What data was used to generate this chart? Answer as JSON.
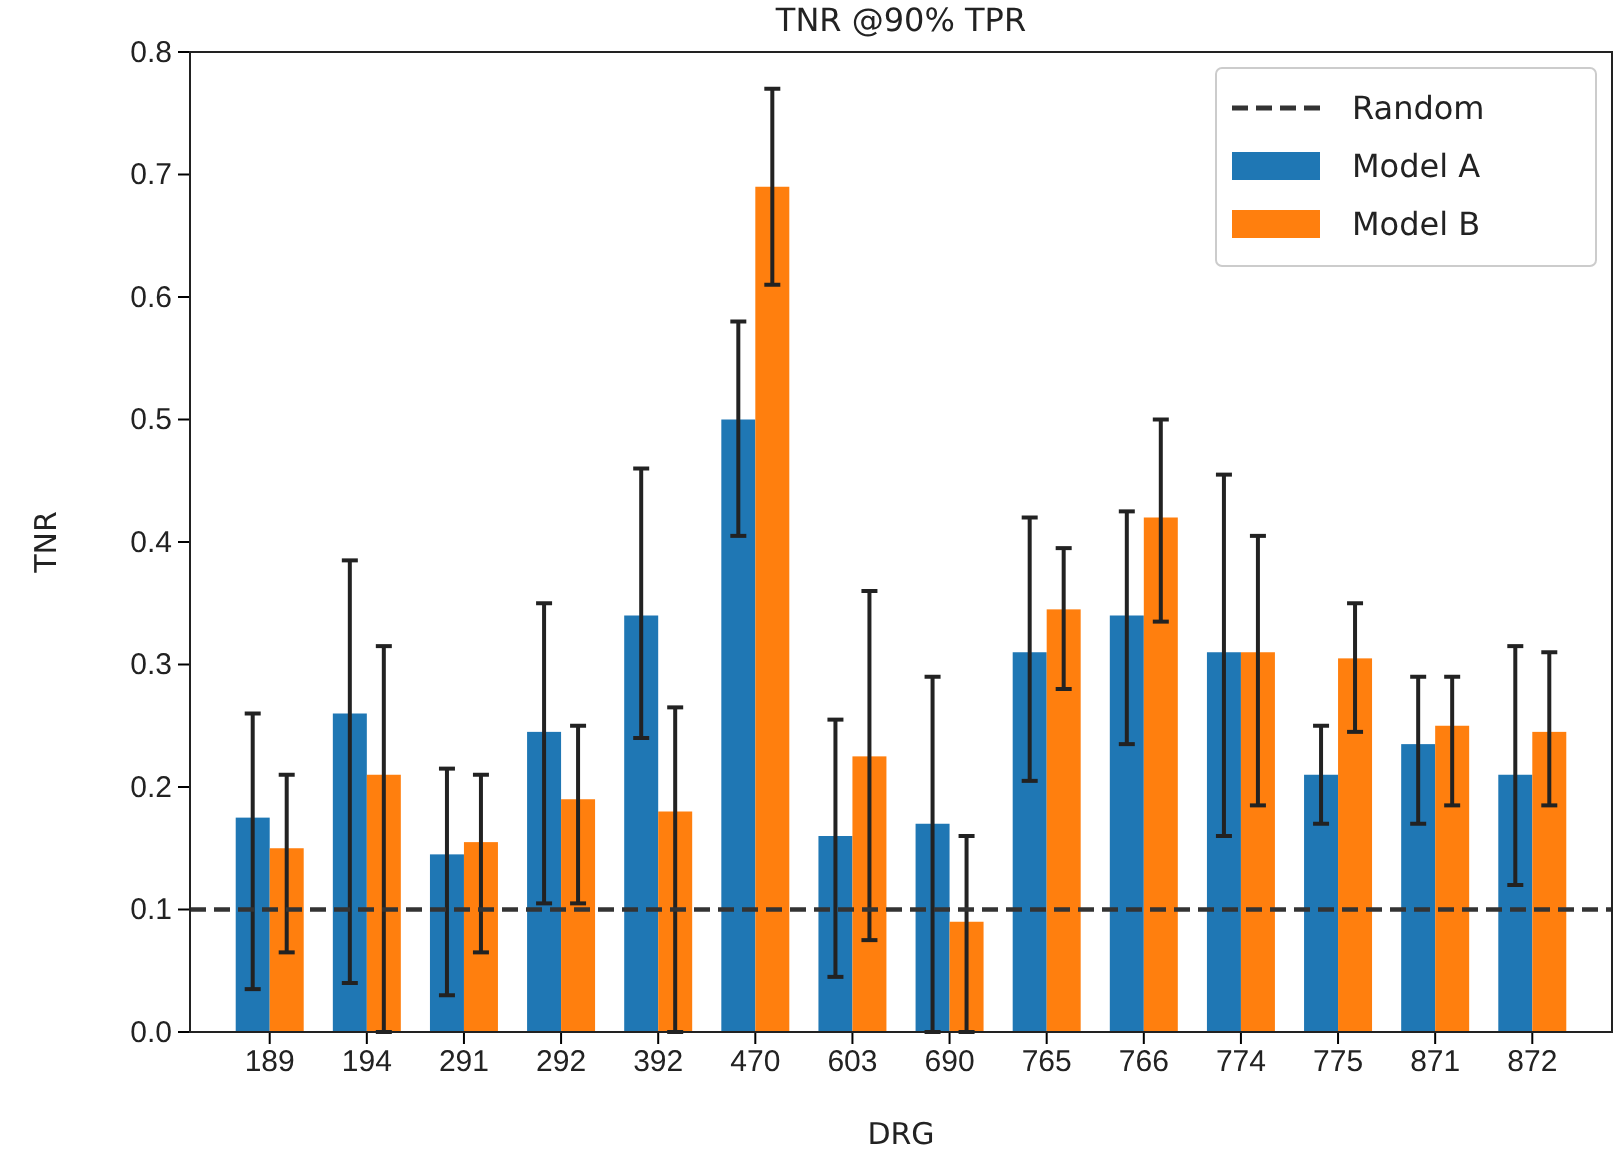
{
  "chart_data": {
    "type": "bar",
    "title": "TNR @90% TPR",
    "xlabel": "DRG",
    "ylabel": "TNR",
    "categories": [
      "189",
      "194",
      "291",
      "292",
      "392",
      "470",
      "603",
      "690",
      "765",
      "766",
      "774",
      "775",
      "871",
      "872"
    ],
    "series": [
      {
        "name": "Model A",
        "color": "#1f77b4",
        "values": [
          0.175,
          0.26,
          0.145,
          0.245,
          0.34,
          0.5,
          0.16,
          0.17,
          0.31,
          0.34,
          0.31,
          0.21,
          0.235,
          0.21
        ],
        "errors": [
          [
            0.035,
            0.26
          ],
          [
            0.04,
            0.385
          ],
          [
            0.03,
            0.215
          ],
          [
            0.105,
            0.35
          ],
          [
            0.24,
            0.46
          ],
          [
            0.405,
            0.58
          ],
          [
            0.045,
            0.255
          ],
          [
            0.0,
            0.29
          ],
          [
            0.205,
            0.42
          ],
          [
            0.235,
            0.425
          ],
          [
            0.16,
            0.455
          ],
          [
            0.17,
            0.25
          ],
          [
            0.17,
            0.29
          ],
          [
            0.12,
            0.315
          ]
        ]
      },
      {
        "name": "Model B",
        "color": "#ff7f0e",
        "values": [
          0.15,
          0.21,
          0.155,
          0.19,
          0.18,
          0.69,
          0.225,
          0.09,
          0.345,
          0.42,
          0.31,
          0.305,
          0.25,
          0.245
        ],
        "errors": [
          [
            0.065,
            0.21
          ],
          [
            0.0,
            0.315
          ],
          [
            0.065,
            0.21
          ],
          [
            0.105,
            0.25
          ],
          [
            0.0,
            0.265
          ],
          [
            0.61,
            0.77
          ],
          [
            0.075,
            0.36
          ],
          [
            0.0,
            0.16
          ],
          [
            0.28,
            0.395
          ],
          [
            0.335,
            0.5
          ],
          [
            0.185,
            0.405
          ],
          [
            0.245,
            0.35
          ],
          [
            0.185,
            0.29
          ],
          [
            0.185,
            0.31
          ]
        ]
      }
    ],
    "ylim": [
      0,
      0.8
    ],
    "yticks": [
      {
        "value": 0,
        "label": "0.0"
      },
      {
        "value": 0.1,
        "label": "0.1"
      },
      {
        "value": 0.2,
        "label": "0.2"
      },
      {
        "value": 0.3,
        "label": "0.3"
      },
      {
        "value": 0.4,
        "label": "0.4"
      },
      {
        "value": 0.5,
        "label": "0.5"
      },
      {
        "value": 0.6,
        "label": "0.6"
      },
      {
        "value": 0.7,
        "label": "0.7"
      },
      {
        "value": 0.8,
        "label": "0.8"
      }
    ],
    "ref_lines": [
      {
        "axis": "y",
        "value": 0.1,
        "label": "Random",
        "color": "#333333",
        "line_style": "dashed"
      }
    ],
    "legend": "top right",
    "grid": false
  }
}
